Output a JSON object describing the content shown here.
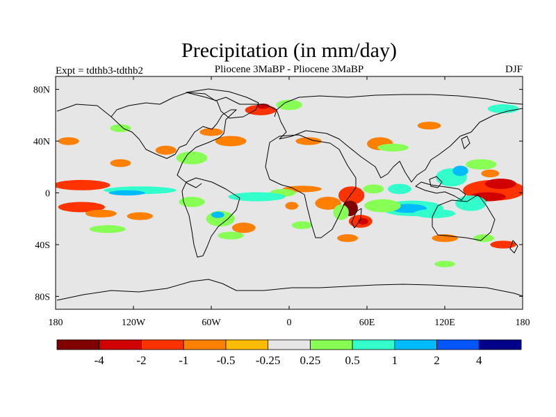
{
  "chart_data": {
    "type": "heatmap",
    "title": "Precipitation (in mm/day)",
    "subtitle_left": "Expt = tdthb3-tdthb2",
    "subtitle_center": "Pliocene   3MaBP - Pliocene   3MaBP",
    "subtitle_right": "DJF",
    "x_ticks": [
      {
        "value": -180,
        "label": "180"
      },
      {
        "value": -120,
        "label": "120W"
      },
      {
        "value": -60,
        "label": "60W"
      },
      {
        "value": 0,
        "label": "0"
      },
      {
        "value": 60,
        "label": "60E"
      },
      {
        "value": 120,
        "label": "120E"
      },
      {
        "value": 180,
        "label": "180"
      }
    ],
    "y_ticks": [
      {
        "value": 80,
        "label": "80N"
      },
      {
        "value": 40,
        "label": "40N"
      },
      {
        "value": 0,
        "label": "0"
      },
      {
        "value": -40,
        "label": "40S"
      },
      {
        "value": -80,
        "label": "80S"
      }
    ],
    "xlim": [
      -180,
      180
    ],
    "ylim": [
      -90,
      90
    ],
    "colorbar": {
      "colors": [
        "#800000",
        "#d10000",
        "#ff3300",
        "#ff7f00",
        "#ffbb00",
        "#e6e6e6",
        "#88ff55",
        "#33ffcc",
        "#00bbff",
        "#0055ff",
        "#000088"
      ],
      "labels": [
        "-4",
        "-2",
        "-1",
        "-0.5",
        "-0.25",
        "0.25",
        "0.5",
        "1",
        "2",
        "4"
      ]
    },
    "anomaly_blobs": [
      {
        "lon": 158,
        "lat": 2,
        "rx": 24,
        "ry": 8,
        "level": 2
      },
      {
        "lon": 163,
        "lat": 7,
        "rx": 12,
        "ry": 4,
        "level": 1
      },
      {
        "lon": 153,
        "lat": -3,
        "rx": 14,
        "ry": 3.5,
        "level": 1
      },
      {
        "lon": 125,
        "lat": 12,
        "rx": 12,
        "ry": 7,
        "level": 7
      },
      {
        "lon": 132,
        "lat": 17,
        "rx": 6,
        "ry": 4,
        "level": 8
      },
      {
        "lon": 140,
        "lat": -8,
        "rx": 12,
        "ry": 6,
        "level": 7
      },
      {
        "lon": 148,
        "lat": 22,
        "rx": 12,
        "ry": 4,
        "level": 6
      },
      {
        "lon": 95,
        "lat": -12,
        "rx": 24,
        "ry": 6,
        "level": 7
      },
      {
        "lon": 92,
        "lat": -12,
        "rx": 14,
        "ry": 3.5,
        "level": 8
      },
      {
        "lon": 72,
        "lat": -10,
        "rx": 14,
        "ry": 5,
        "level": 6
      },
      {
        "lon": 112,
        "lat": -16,
        "rx": 16,
        "ry": 3.5,
        "level": 7
      },
      {
        "lon": 85,
        "lat": 3,
        "rx": 9,
        "ry": 4,
        "level": 7
      },
      {
        "lon": 65,
        "lat": 3,
        "rx": 8,
        "ry": 3.5,
        "level": 6
      },
      {
        "lon": 48,
        "lat": -2,
        "rx": 10,
        "ry": 7,
        "level": 2
      },
      {
        "lon": 47,
        "lat": -12,
        "rx": 6,
        "ry": 6,
        "level": 0
      },
      {
        "lon": 55,
        "lat": -22,
        "rx": 9,
        "ry": 5,
        "level": 2
      },
      {
        "lon": 57,
        "lat": -22,
        "rx": 4,
        "ry": 2.5,
        "level": 1
      },
      {
        "lon": 30,
        "lat": -8,
        "rx": 10,
        "ry": 5,
        "level": 3
      },
      {
        "lon": 40,
        "lat": -15,
        "rx": 6,
        "ry": 6,
        "level": 6
      },
      {
        "lon": 10,
        "lat": 3,
        "rx": 15,
        "ry": 2.5,
        "level": 3
      },
      {
        "lon": -5,
        "lat": 0,
        "rx": 10,
        "ry": 3,
        "level": 6
      },
      {
        "lon": -25,
        "lat": -3,
        "rx": 22,
        "ry": 3.5,
        "level": 7
      },
      {
        "lon": -75,
        "lat": -7,
        "rx": 10,
        "ry": 4,
        "level": 6
      },
      {
        "lon": -53,
        "lat": -20,
        "rx": 11,
        "ry": 6,
        "level": 6
      },
      {
        "lon": -55,
        "lat": -17,
        "rx": 5,
        "ry": 2.5,
        "level": 8
      },
      {
        "lon": -35,
        "lat": -27,
        "rx": 9,
        "ry": 4,
        "level": 3
      },
      {
        "lon": -45,
        "lat": -33,
        "rx": 10,
        "ry": 3,
        "level": 6
      },
      {
        "lon": -160,
        "lat": 6,
        "rx": 22,
        "ry": 4,
        "level": 2
      },
      {
        "lon": -115,
        "lat": 2,
        "rx": 28,
        "ry": 3,
        "level": 7
      },
      {
        "lon": -125,
        "lat": 0,
        "rx": 14,
        "ry": 2,
        "level": 8
      },
      {
        "lon": -160,
        "lat": -11,
        "rx": 18,
        "ry": 4,
        "level": 2
      },
      {
        "lon": -145,
        "lat": -16,
        "rx": 12,
        "ry": 3,
        "level": 3
      },
      {
        "lon": -115,
        "lat": -18,
        "rx": 10,
        "ry": 3,
        "level": 3
      },
      {
        "lon": -140,
        "lat": -28,
        "rx": 14,
        "ry": 3,
        "level": 6
      },
      {
        "lon": -75,
        "lat": 27,
        "rx": 12,
        "ry": 5,
        "level": 6
      },
      {
        "lon": -95,
        "lat": 33,
        "rx": 8,
        "ry": 3.5,
        "level": 3
      },
      {
        "lon": -45,
        "lat": 40,
        "rx": 12,
        "ry": 4,
        "level": 3
      },
      {
        "lon": -60,
        "lat": 47,
        "rx": 9,
        "ry": 3,
        "level": 3
      },
      {
        "lon": -22,
        "lat": 64,
        "rx": 12,
        "ry": 4,
        "level": 2
      },
      {
        "lon": -20,
        "lat": 67,
        "rx": 5,
        "ry": 2,
        "level": 1
      },
      {
        "lon": 0,
        "lat": 68,
        "rx": 10,
        "ry": 4,
        "level": 6
      },
      {
        "lon": 15,
        "lat": 40,
        "rx": 10,
        "ry": 3,
        "level": 3
      },
      {
        "lon": 70,
        "lat": 38,
        "rx": 10,
        "ry": 5,
        "level": 3
      },
      {
        "lon": 80,
        "lat": 35,
        "rx": 12,
        "ry": 3,
        "level": 6
      },
      {
        "lon": 165,
        "lat": 65,
        "rx": 12,
        "ry": 3.5,
        "level": 7
      },
      {
        "lon": 108,
        "lat": 52,
        "rx": 9,
        "ry": 3,
        "level": 3
      },
      {
        "lon": -170,
        "lat": 40,
        "rx": 8,
        "ry": 3,
        "level": 3
      },
      {
        "lon": -130,
        "lat": 50,
        "rx": 8,
        "ry": 3,
        "level": 6
      },
      {
        "lon": 165,
        "lat": -40,
        "rx": 10,
        "ry": 3,
        "level": 2
      },
      {
        "lon": 150,
        "lat": -35,
        "rx": 8,
        "ry": 3,
        "level": 6
      },
      {
        "lon": 120,
        "lat": -35,
        "rx": 10,
        "ry": 3,
        "level": 3
      },
      {
        "lon": 45,
        "lat": -35,
        "rx": 8,
        "ry": 3,
        "level": 3
      },
      {
        "lon": 10,
        "lat": -25,
        "rx": 8,
        "ry": 3,
        "level": 6
      },
      {
        "lon": -130,
        "lat": 23,
        "rx": 8,
        "ry": 3,
        "level": 3
      },
      {
        "lon": 120,
        "lat": -55,
        "rx": 8,
        "ry": 2.5,
        "level": 6
      },
      {
        "lon": 155,
        "lat": 15,
        "rx": 7,
        "ry": 3,
        "level": 3
      },
      {
        "lon": 2,
        "lat": -10,
        "rx": 5,
        "ry": 3,
        "level": 3
      }
    ]
  }
}
